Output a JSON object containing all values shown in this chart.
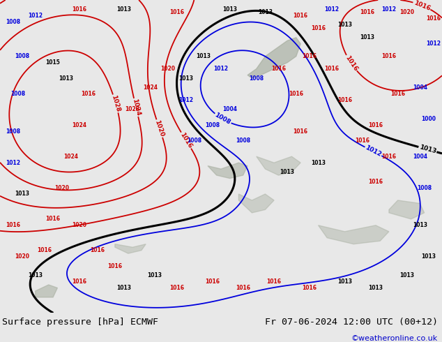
{
  "title_left": "Surface pressure [hPa] ECMWF",
  "title_right": "Fr 07-06-2024 12:00 UTC (00+12)",
  "copyright": "©weatheronline.co.uk",
  "bg_land_color": "#b8d8a0",
  "bg_sea_color": "#b8d8a0",
  "gray_terrain_color": "#a0a898",
  "bottom_bar_color": "#e8e8e8",
  "contour_low_color": "#0000dd",
  "contour_high_color": "#cc0000",
  "contour_black_color": "#000000",
  "font_size_title": 9.5,
  "font_size_labels": 6.5,
  "font_size_copyright": 8,
  "map_bg": "#b8d8a0"
}
